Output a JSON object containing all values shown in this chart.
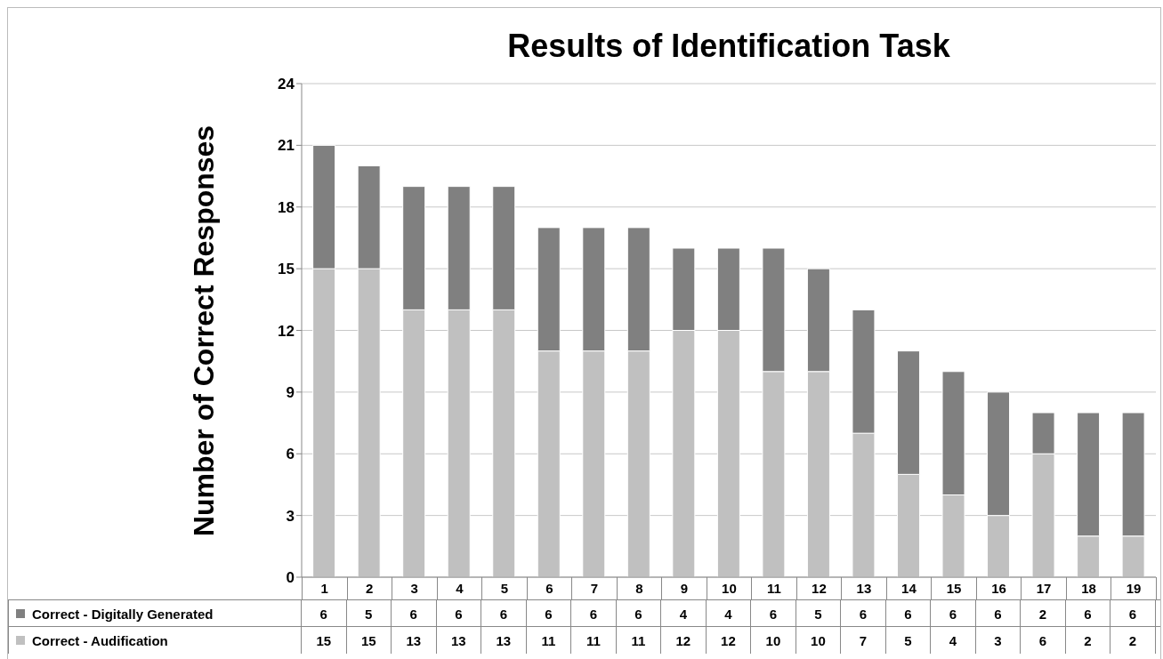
{
  "chart_data": {
    "type": "bar",
    "title": "Results of Identification Task",
    "ylabel": "Number of Correct Responses",
    "categories": [
      "1",
      "2",
      "3",
      "4",
      "5",
      "6",
      "7",
      "8",
      "9",
      "10",
      "11",
      "12",
      "13",
      "14",
      "15",
      "16",
      "17",
      "18",
      "19"
    ],
    "stacked": true,
    "ylim": [
      0,
      24
    ],
    "yticks": [
      0,
      3,
      6,
      9,
      12,
      15,
      18,
      21,
      24
    ],
    "grid": "y",
    "legend": "bottom",
    "data_labels": true,
    "series": [
      {
        "name": "Correct - Audification",
        "color": "#c0c0c0",
        "values": [
          15,
          15,
          13,
          13,
          13,
          11,
          11,
          11,
          12,
          12,
          10,
          10,
          7,
          5,
          4,
          3,
          6,
          2,
          2
        ]
      },
      {
        "name": "Correct - Digitally Generated",
        "color": "#808080",
        "values": [
          6,
          5,
          6,
          6,
          6,
          6,
          6,
          6,
          4,
          4,
          6,
          5,
          6,
          6,
          6,
          6,
          2,
          6,
          6
        ]
      }
    ]
  }
}
